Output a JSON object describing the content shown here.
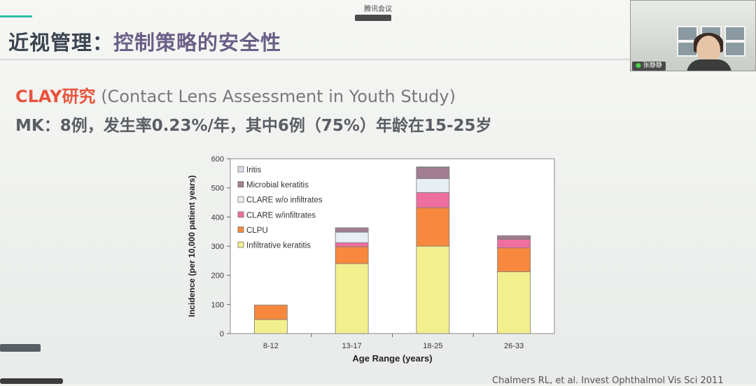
{
  "meeting": {
    "app_title": "腾讯会议",
    "badge": "",
    "share_label": "",
    "participant_name": "张静静"
  },
  "slide": {
    "title_main": "近视管理：",
    "title_sub": "控制策略的安全性",
    "line1_highlight": "CLAY研究",
    "line1_rest": " (Contact Lens Assessment in Youth Study)",
    "line2": "MK：8例，发生率0.23%/年，其中6例（75%）年龄在15-25岁",
    "citation": "Chalmers RL, et al. Invest Ophthalmol Vis Sci 2011"
  },
  "colors": {
    "accent": "#2bbfa4",
    "highlight": "#e8533c"
  },
  "chart_data": {
    "type": "bar",
    "stacked": true,
    "categories": [
      "8-12",
      "13-17",
      "18-25",
      "26-33"
    ],
    "xlabel": "Age Range (years)",
    "ylabel": "Incidence (per 10,000 patient years)",
    "ylim": [
      0,
      600
    ],
    "yticks": [
      0,
      100,
      200,
      300,
      400,
      500,
      600
    ],
    "legend_position": "top-left",
    "series": [
      {
        "name": "Infiltrative keratitis",
        "color": "#f3ef8e",
        "values": [
          48,
          240,
          300,
          212
        ]
      },
      {
        "name": "CLPU",
        "color": "#f7883e",
        "values": [
          50,
          58,
          132,
          82
        ]
      },
      {
        "name": "CLARE w/infiltrates",
        "color": "#ef6f9f",
        "values": [
          0,
          14,
          52,
          30
        ]
      },
      {
        "name": "CLARE w/o infiltrates",
        "color": "#e7eef4",
        "values": [
          0,
          36,
          48,
          2
        ]
      },
      {
        "name": "Microbial keratitis",
        "color": "#a17e92",
        "values": [
          0,
          15,
          38,
          10
        ]
      },
      {
        "name": "Iritis",
        "color": "#d9dbe6",
        "values": [
          0,
          0,
          2,
          0
        ]
      }
    ]
  }
}
